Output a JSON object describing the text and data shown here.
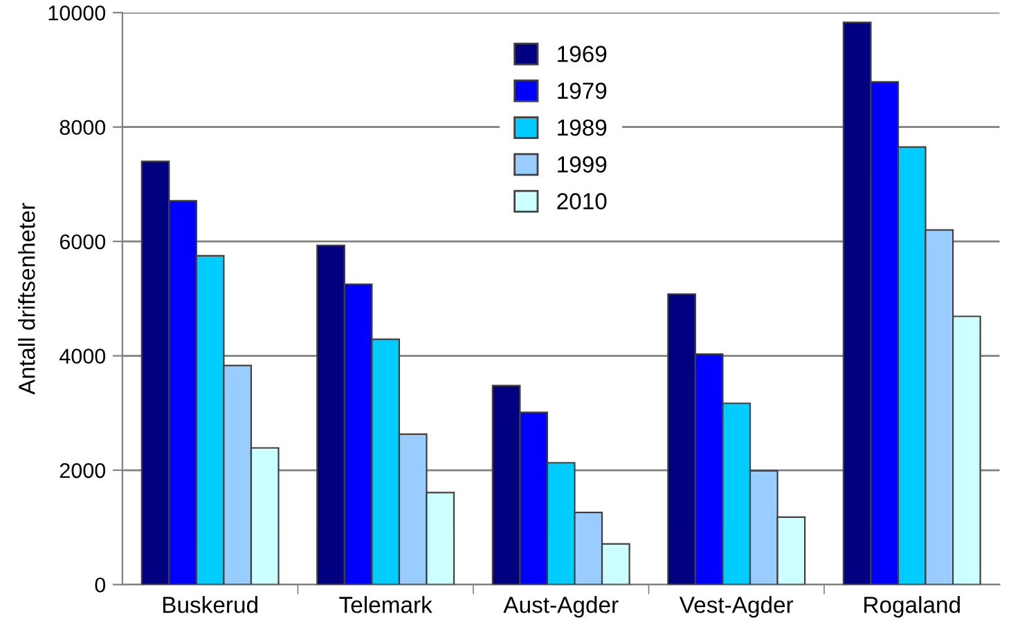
{
  "chart_data": {
    "type": "bar",
    "ylabel": "Antall driftsenheter",
    "categories": [
      "Buskerud",
      "Telemark",
      "Aust-Agder",
      "Vest-Agder",
      "Rogaland"
    ],
    "series": [
      {
        "name": "1969",
        "color": "#000080",
        "values": [
          7400,
          5930,
          3480,
          5080,
          9830
        ]
      },
      {
        "name": "1979",
        "color": "#0000ff",
        "values": [
          6710,
          5250,
          3010,
          4030,
          8790
        ]
      },
      {
        "name": "1989",
        "color": "#00ccff",
        "values": [
          5750,
          4290,
          2130,
          3170,
          7650
        ]
      },
      {
        "name": "1999",
        "color": "#99ccff",
        "values": [
          3830,
          2630,
          1260,
          1990,
          6200
        ]
      },
      {
        "name": "2010",
        "color": "#ccffff",
        "values": [
          2390,
          1610,
          710,
          1180,
          4690
        ]
      }
    ],
    "ylim": [
      0,
      10000
    ],
    "yticks": [
      0,
      2000,
      4000,
      6000,
      8000,
      10000
    ],
    "grid": "y",
    "legend": "top"
  }
}
